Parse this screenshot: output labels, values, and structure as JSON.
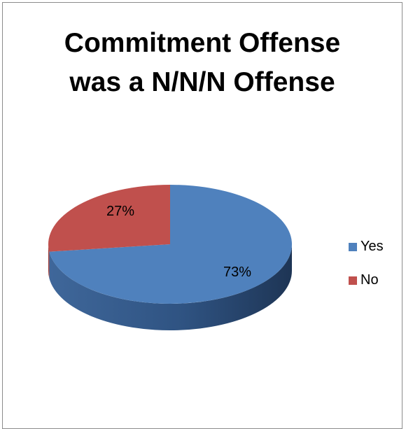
{
  "chart_data": {
    "type": "pie",
    "title_lines": [
      "Commitment Offense",
      "was a N/N/N Offense"
    ],
    "categories": [
      "Yes",
      "No"
    ],
    "values": [
      73,
      27
    ],
    "labels": [
      "73%",
      "27%"
    ],
    "colors": {
      "Yes": "#4f81bd",
      "No": "#c0504d"
    },
    "legend_position": "right",
    "style": "3d"
  }
}
